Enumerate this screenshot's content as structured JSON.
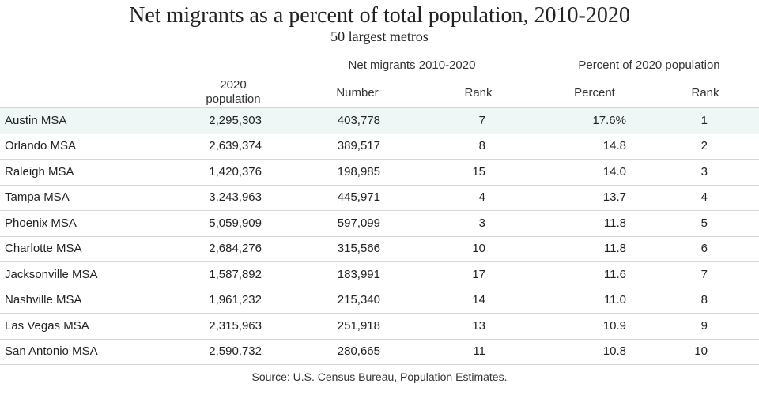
{
  "chart_data": {
    "type": "table",
    "title": "Net migrants as a percent of total population, 2010-2020",
    "subtitle": "50 largest metros",
    "group_headers": {
      "net_migrants": "Net migrants 2010-2020",
      "percent_pop": "Percent of 2020 population"
    },
    "columns": {
      "population": "2020 population",
      "number": "Number",
      "rank": "Rank",
      "percent": "Percent",
      "pct_rank": "Rank"
    },
    "rows": [
      {
        "name": "Austin MSA",
        "population": "2,295,303",
        "number": "403,778",
        "rank": "7",
        "percent": "17.6%",
        "pct_rank": "1"
      },
      {
        "name": "Orlando MSA",
        "population": "2,639,374",
        "number": "389,517",
        "rank": "8",
        "percent": "14.8",
        "pct_rank": "2"
      },
      {
        "name": "Raleigh MSA",
        "population": "1,420,376",
        "number": "198,985",
        "rank": "15",
        "percent": "14.0",
        "pct_rank": "3"
      },
      {
        "name": "Tampa MSA",
        "population": "3,243,963",
        "number": "445,971",
        "rank": "4",
        "percent": "13.7",
        "pct_rank": "4"
      },
      {
        "name": "Phoenix MSA",
        "population": "5,059,909",
        "number": "597,099",
        "rank": "3",
        "percent": "11.8",
        "pct_rank": "5"
      },
      {
        "name": "Charlotte MSA",
        "population": "2,684,276",
        "number": "315,566",
        "rank": "10",
        "percent": "11.8",
        "pct_rank": "6"
      },
      {
        "name": "Jacksonville MSA",
        "population": "1,587,892",
        "number": "183,991",
        "rank": "17",
        "percent": "11.6",
        "pct_rank": "7"
      },
      {
        "name": "Nashville MSA",
        "population": "1,961,232",
        "number": "215,340",
        "rank": "14",
        "percent": "11.0",
        "pct_rank": "8"
      },
      {
        "name": "Las Vegas MSA",
        "population": "2,315,963",
        "number": "251,918",
        "rank": "13",
        "percent": "10.9",
        "pct_rank": "9"
      },
      {
        "name": "San Antonio MSA",
        "population": "2,590,732",
        "number": "280,665",
        "rank": "11",
        "percent": "10.8",
        "pct_rank": "10"
      }
    ],
    "source": "Source:  U.S. Census Bureau, Population Estimates.",
    "highlight_color": "#eef6f6",
    "grid_color": "#d6d6d6"
  }
}
